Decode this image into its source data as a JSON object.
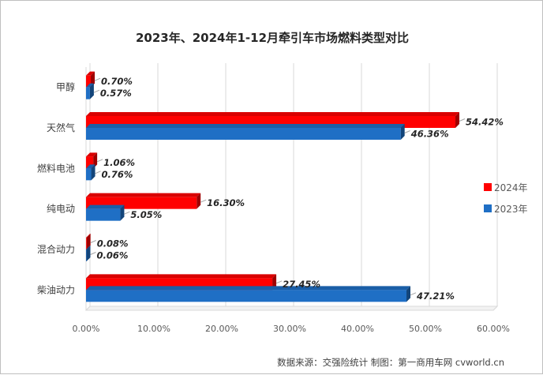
{
  "chart_data": {
    "type": "bar",
    "orientation": "horizontal",
    "title": "2023年、2024年1-12月牵引车市场燃料类型对比",
    "categories": [
      "甲醇",
      "天然气",
      "燃料电池",
      "纯电动",
      "混合动力",
      "柴油动力"
    ],
    "series": [
      {
        "name": "2024年",
        "color": "#ff0000",
        "values": [
          0.7,
          54.42,
          1.06,
          16.3,
          0.08,
          27.45
        ],
        "labels": [
          "0.70%",
          "54.42%",
          "1.06%",
          "16.30%",
          "0.08%",
          "27.45%"
        ]
      },
      {
        "name": "2023年",
        "color": "#1f6fc5",
        "values": [
          0.57,
          46.36,
          0.76,
          5.05,
          0.06,
          47.21
        ],
        "labels": [
          "0.57%",
          "46.36%",
          "0.76%",
          "5.05%",
          "0.06%",
          "47.21%"
        ]
      }
    ],
    "xlim": [
      0,
      60
    ],
    "xticks": [
      0,
      10,
      20,
      30,
      40,
      50,
      60
    ],
    "xtick_labels": [
      "0.00%",
      "10.00%",
      "20.00%",
      "30.00%",
      "40.00%",
      "50.00%",
      "60.00%"
    ],
    "grid": true,
    "legend_position": "right",
    "xlabel": "",
    "ylabel": ""
  },
  "source": "数据来源：交强险统计    制图：第一商用车网 cvworld.cn"
}
